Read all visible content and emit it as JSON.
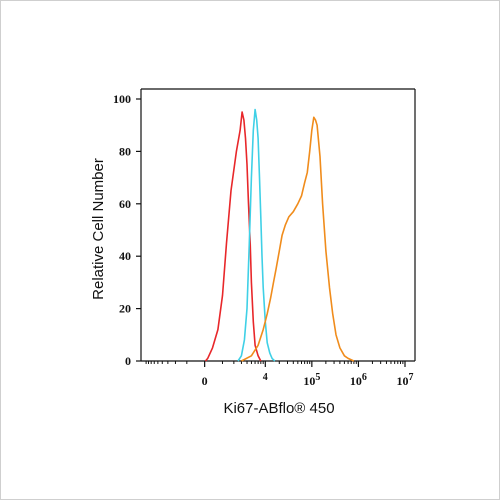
{
  "chart_data": {
    "type": "line",
    "title": "",
    "xlabel": "Ki67-ABflo® 450",
    "ylabel": "Relative Cell Number",
    "x_scale": "biexponential",
    "xlim": [
      -10000,
      10000000
    ],
    "ylim": [
      0,
      100
    ],
    "yticks": [
      "0",
      "20",
      "40",
      "60",
      "80",
      "100"
    ],
    "xticks": [
      {
        "base": "0",
        "exp": ""
      },
      {
        "base": "",
        "exp": "4"
      },
      {
        "base": "10",
        "exp": "5"
      },
      {
        "base": "10",
        "exp": "6"
      },
      {
        "base": "10",
        "exp": "7"
      }
    ],
    "grid": false,
    "legend": "none",
    "series": [
      {
        "color": "#e8272a",
        "x": [
          40,
          150,
          400,
          700,
          1000,
          1300,
          1700,
          2300,
          2800,
          3100,
          3400,
          3700,
          4000,
          4300,
          4700,
          5000,
          5500,
          6000,
          7000,
          8000
        ],
        "y": [
          0,
          1,
          5,
          12,
          25,
          45,
          65,
          80,
          88,
          95,
          92,
          85,
          75,
          60,
          45,
          30,
          15,
          6,
          2,
          0
        ]
      },
      {
        "color": "#3fd0e6",
        "x": [
          2500,
          3000,
          3500,
          4000,
          4500,
          5000,
          5500,
          6000,
          6500,
          7000,
          7500,
          8000,
          8500,
          9000,
          10000,
          11000,
          12500,
          14000,
          16000
        ],
        "y": [
          0,
          2,
          8,
          20,
          45,
          70,
          88,
          96,
          92,
          85,
          70,
          55,
          40,
          28,
          15,
          7,
          3,
          1,
          0
        ]
      },
      {
        "color": "#f08c1c",
        "x": [
          3000,
          5000,
          7000,
          9000,
          11000,
          13000,
          15000,
          17000,
          20000,
          23000,
          27000,
          32000,
          40000,
          50000,
          60000,
          70000,
          80000,
          90000,
          100000,
          110000,
          120000,
          130000,
          150000,
          170000,
          200000,
          240000,
          280000,
          330000,
          400000,
          500000,
          600000,
          800000
        ],
        "y": [
          0,
          2,
          6,
          12,
          18,
          24,
          30,
          35,
          42,
          48,
          52,
          55,
          57,
          60,
          63,
          68,
          72,
          80,
          88,
          93,
          92,
          90,
          78,
          60,
          42,
          28,
          18,
          10,
          5,
          2,
          1,
          0
        ]
      }
    ]
  }
}
